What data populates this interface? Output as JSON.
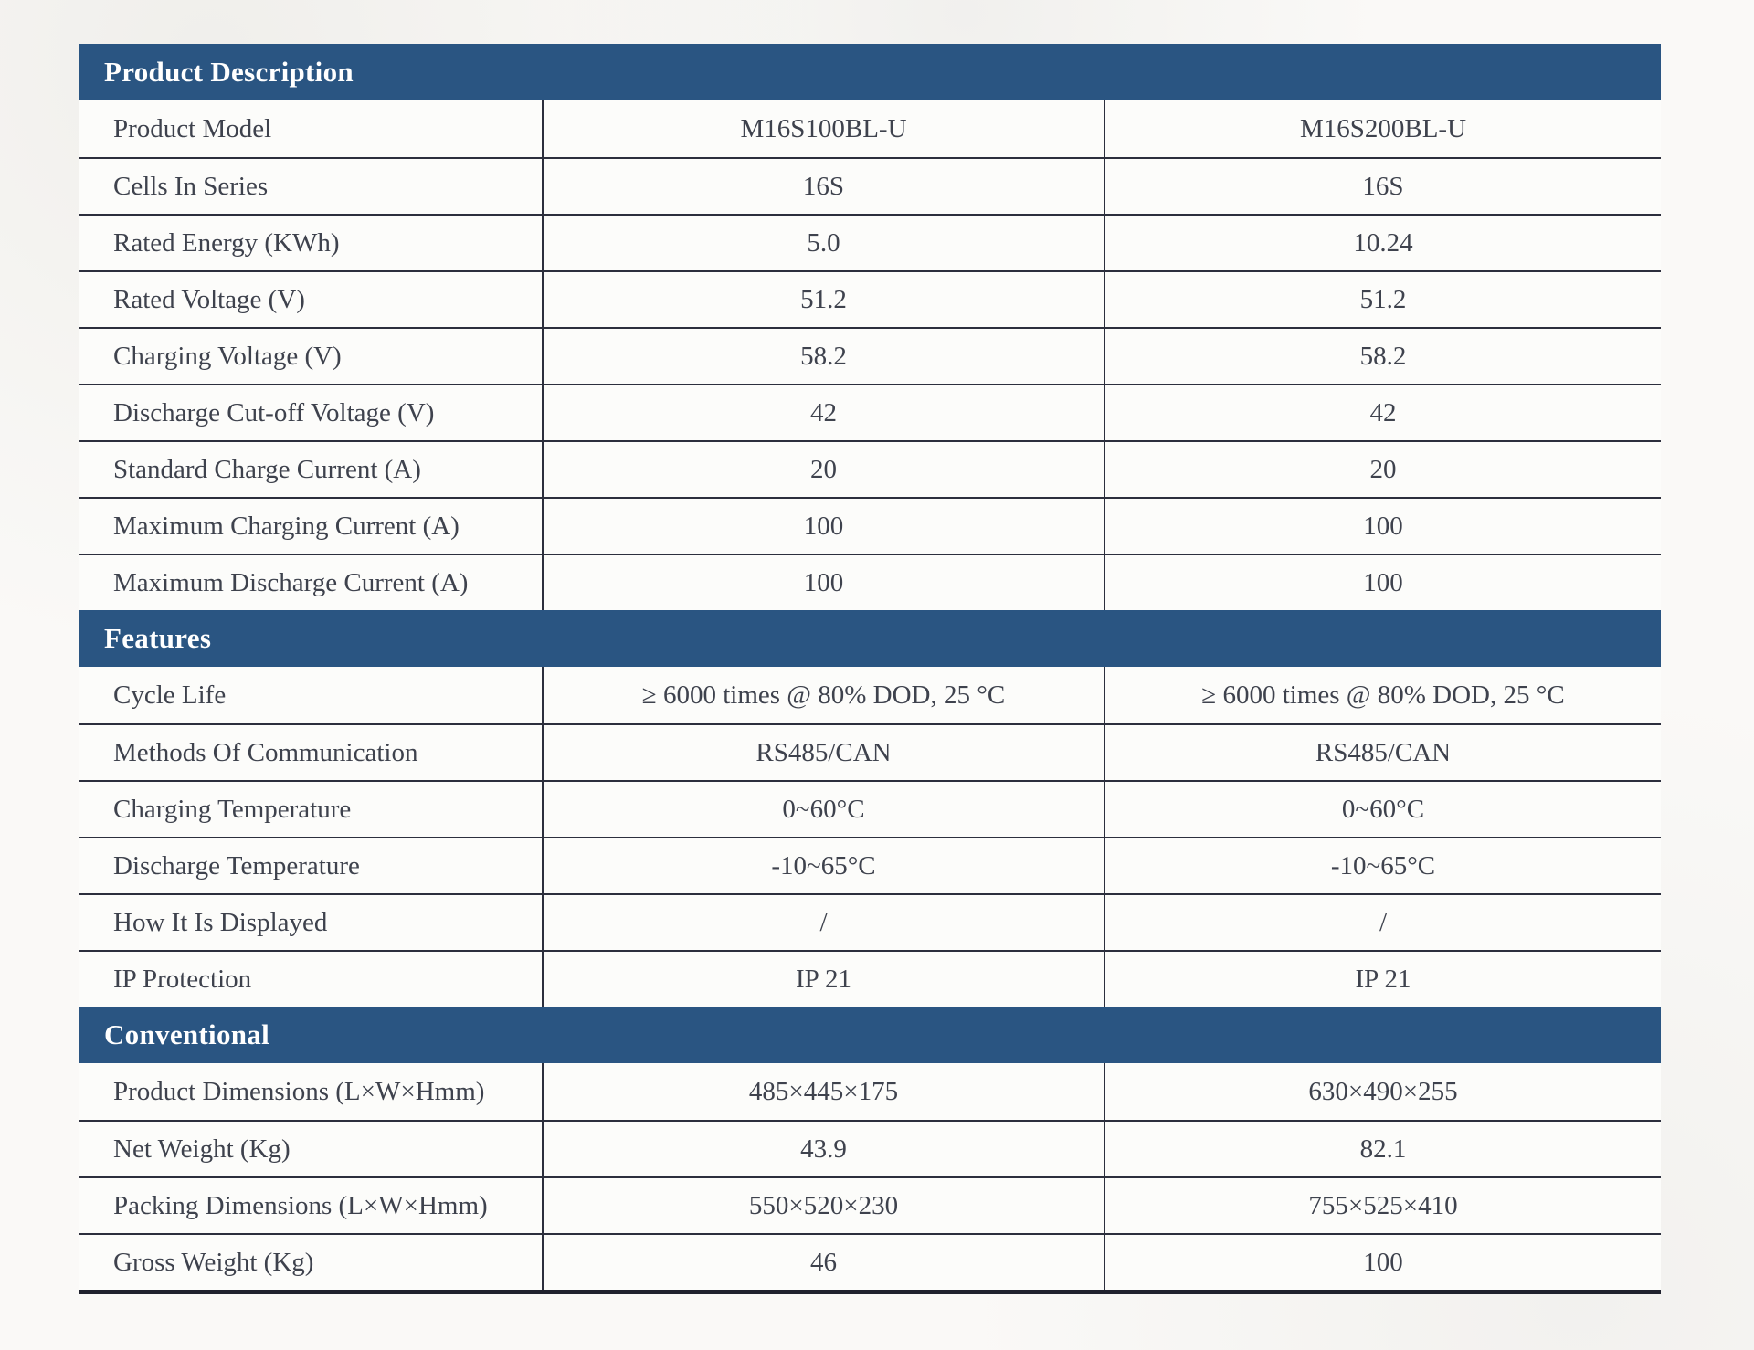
{
  "colors": {
    "accent": "#2a5582",
    "line": "#2c2f3d",
    "line_strong": "#20222e",
    "page_bg": "#faf9f7",
    "row_bg": "#fcfcfa",
    "header_text": "#ffffff",
    "text": "#3e424d"
  },
  "table": {
    "sections": [
      {
        "title": "Product Description",
        "rows": [
          {
            "label": "Product Model",
            "values": [
              "M16S100BL-U",
              "M16S200BL-U"
            ]
          },
          {
            "label": "Cells In Series",
            "values": [
              "16S",
              "16S"
            ]
          },
          {
            "label": "Rated Energy (KWh)",
            "values": [
              "5.0",
              "10.24"
            ]
          },
          {
            "label": "Rated Voltage (V)",
            "values": [
              "51.2",
              "51.2"
            ]
          },
          {
            "label": "Charging Voltage (V)",
            "values": [
              "58.2",
              "58.2"
            ]
          },
          {
            "label": "Discharge Cut-off Voltage (V)",
            "values": [
              "42",
              "42"
            ]
          },
          {
            "label": "Standard Charge Current (A)",
            "values": [
              "20",
              "20"
            ]
          },
          {
            "label": "Maximum Charging Current (A)",
            "values": [
              "100",
              "100"
            ]
          },
          {
            "label": "Maximum Discharge Current (A)",
            "values": [
              "100",
              "100"
            ]
          }
        ]
      },
      {
        "title": "Features",
        "rows": [
          {
            "label": "Cycle Life",
            "values": [
              "≥ 6000 times @ 80% DOD, 25 °C",
              "≥ 6000 times @ 80% DOD, 25 °C"
            ]
          },
          {
            "label": "Methods Of Communication",
            "values": [
              "RS485/CAN",
              "RS485/CAN"
            ]
          },
          {
            "label": "Charging Temperature",
            "values": [
              "0~60°C",
              "0~60°C"
            ]
          },
          {
            "label": "Discharge Temperature",
            "values": [
              "-10~65°C",
              "-10~65°C"
            ]
          },
          {
            "label": "How It Is Displayed",
            "values": [
              "/",
              "/"
            ]
          },
          {
            "label": "IP Protection",
            "values": [
              "IP 21",
              "IP 21"
            ]
          }
        ]
      },
      {
        "title": "Conventional",
        "rows": [
          {
            "label": "Product Dimensions (L×W×Hmm)",
            "values": [
              "485×445×175",
              "630×490×255"
            ]
          },
          {
            "label": "Net Weight (Kg)",
            "values": [
              "43.9",
              "82.1"
            ]
          },
          {
            "label": "Packing Dimensions (L×W×Hmm)",
            "values": [
              "550×520×230",
              "755×525×410"
            ]
          },
          {
            "label": "Gross Weight (Kg)",
            "values": [
              "46",
              "100"
            ]
          }
        ]
      }
    ]
  }
}
